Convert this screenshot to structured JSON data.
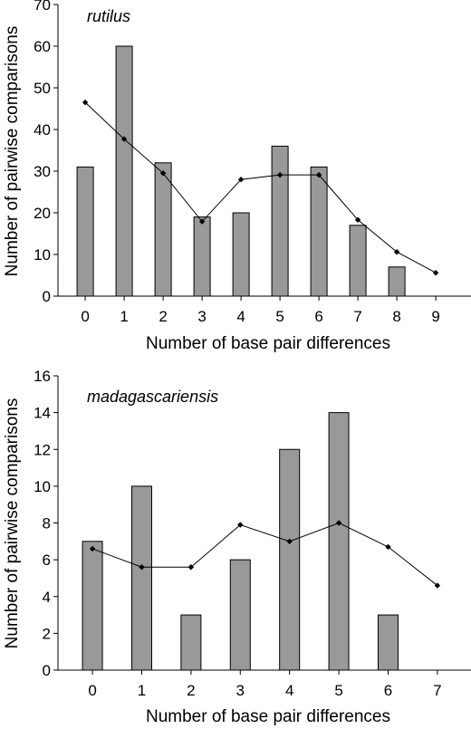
{
  "chart_data": [
    {
      "type": "bar",
      "title": "rutilus",
      "xlabel": "Number of base pair differences",
      "ylabel": "Number of pairwise comparisons",
      "categories": [
        "0",
        "1",
        "2",
        "3",
        "4",
        "5",
        "6",
        "7",
        "8",
        "9"
      ],
      "ylim": [
        0,
        70
      ],
      "yticks": [
        "0",
        "10",
        "20",
        "30",
        "40",
        "50",
        "60",
        "70"
      ],
      "series": [
        {
          "type": "bar",
          "values": [
            31,
            60,
            32,
            19,
            20,
            36,
            31,
            17,
            7,
            0
          ]
        },
        {
          "type": "line",
          "values": [
            46.5,
            37.7,
            29.5,
            17.9,
            28.0,
            29.1,
            29.1,
            18.3,
            10.6,
            5.6
          ]
        }
      ],
      "grid": false,
      "colors": {
        "bar": "#999999",
        "line": "#000000"
      }
    },
    {
      "type": "bar",
      "title": "madagascariensis",
      "xlabel": "Number of base pair differences",
      "ylabel": "Number of pairwise comparisons",
      "categories": [
        "0",
        "1",
        "2",
        "3",
        "4",
        "5",
        "6",
        "7"
      ],
      "ylim": [
        0,
        16
      ],
      "yticks": [
        "0",
        "2",
        "4",
        "6",
        "8",
        "10",
        "12",
        "14",
        "16"
      ],
      "series": [
        {
          "type": "bar",
          "values": [
            7,
            10,
            3,
            6,
            12,
            14,
            3,
            0
          ]
        },
        {
          "type": "line",
          "values": [
            6.6,
            5.6,
            5.6,
            7.9,
            7.0,
            8.0,
            6.7,
            4.6
          ]
        }
      ],
      "grid": false,
      "colors": {
        "bar": "#999999",
        "line": "#000000"
      }
    }
  ]
}
